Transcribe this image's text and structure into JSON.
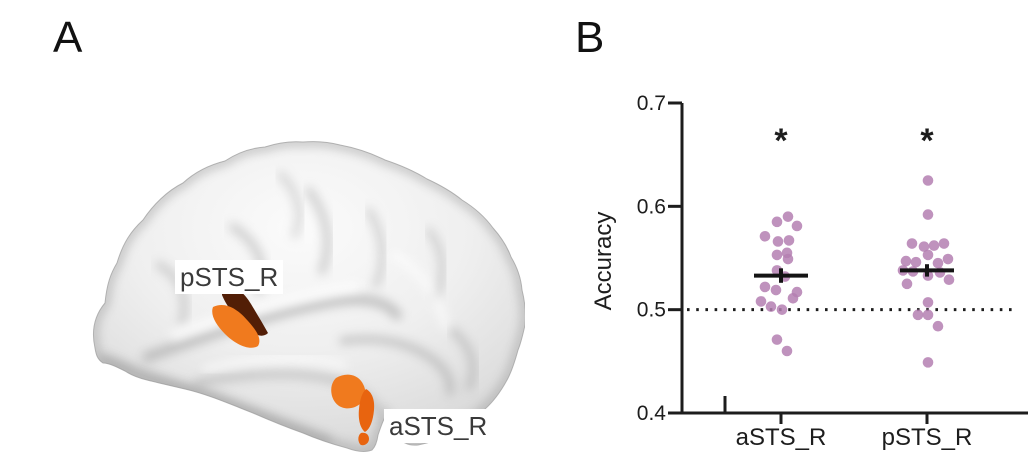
{
  "figure": {
    "background": "#ffffff"
  },
  "panelA": {
    "label": "A",
    "regions": [
      {
        "id": "pSTS_R",
        "label": "pSTS_R"
      },
      {
        "id": "aSTS_R",
        "label": "aSTS_R"
      }
    ],
    "colors": {
      "brain_base": "#ededed",
      "activation_orange": "#f07a1e",
      "activation_orange_deep": "#e8640f",
      "activation_dark": "#521e06"
    }
  },
  "panelB": {
    "label": "B"
  },
  "chart_data": {
    "type": "scatter",
    "title": "",
    "xlabel": "",
    "ylabel": "Accuracy",
    "ylim": [
      0.4,
      0.7
    ],
    "yticks": [
      0.7,
      0.6,
      0.5,
      0.4
    ],
    "chance_line": 0.5,
    "grid": false,
    "categories": [
      "aSTS_R",
      "pSTS_R"
    ],
    "significance": [
      "*",
      "*"
    ],
    "point_color": "#b47fb2",
    "axis_color": "#1d1d1d",
    "series": [
      {
        "name": "aSTS_R",
        "mean": 0.533,
        "sem": 0.007,
        "points": [
          [
            0.59,
            7
          ],
          [
            0.585,
            -4
          ],
          [
            0.581,
            16
          ],
          [
            0.571,
            -16
          ],
          [
            0.567,
            8
          ],
          [
            0.566,
            -3
          ],
          [
            0.555,
            6
          ],
          [
            0.553,
            -4
          ],
          [
            0.549,
            7
          ],
          [
            0.538,
            -4
          ],
          [
            0.532,
            4
          ],
          [
            0.522,
            -16
          ],
          [
            0.519,
            -5
          ],
          [
            0.517,
            16
          ],
          [
            0.511,
            12
          ],
          [
            0.508,
            -20
          ],
          [
            0.503,
            -10
          ],
          [
            0.5,
            1
          ],
          [
            0.471,
            -4
          ],
          [
            0.46,
            6
          ]
        ]
      },
      {
        "name": "pSTS_R",
        "mean": 0.538,
        "sem": 0.006,
        "points": [
          [
            0.625,
            1
          ],
          [
            0.592,
            1
          ],
          [
            0.564,
            -15
          ],
          [
            0.564,
            17
          ],
          [
            0.562,
            7
          ],
          [
            0.561,
            -3
          ],
          [
            0.553,
            1
          ],
          [
            0.549,
            21
          ],
          [
            0.547,
            -21
          ],
          [
            0.546,
            -11
          ],
          [
            0.545,
            11
          ],
          [
            0.538,
            -24
          ],
          [
            0.537,
            -14
          ],
          [
            0.536,
            13
          ],
          [
            0.533,
            1
          ],
          [
            0.529,
            22
          ],
          [
            0.525,
            -20
          ],
          [
            0.507,
            1
          ],
          [
            0.495,
            -9
          ],
          [
            0.495,
            1
          ],
          [
            0.484,
            11
          ],
          [
            0.449,
            1
          ]
        ]
      }
    ]
  }
}
